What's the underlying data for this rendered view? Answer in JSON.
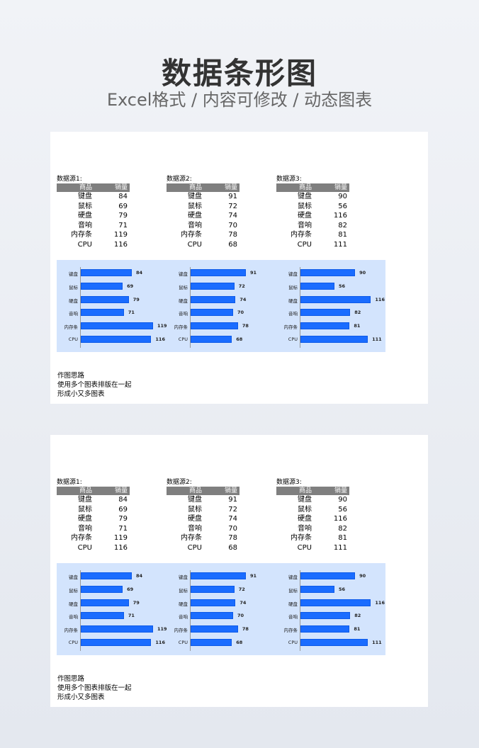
{
  "header": {
    "title": "数据条形图",
    "subtitle": "Excel格式 / 内容可修改 / 动态图表"
  },
  "colors": {
    "bar": "#1a6cff",
    "panel": "#d3e4fd",
    "table_header": "#7f7f7f"
  },
  "cards": [
    {
      "sources": [
        {
          "label": "数据源1:",
          "col1": "商品",
          "col2": "销量",
          "rows": [
            [
              "键盘",
              84
            ],
            [
              "鼠标",
              69
            ],
            [
              "硬盘",
              79
            ],
            [
              "音响",
              71
            ],
            [
              "内存条",
              119
            ],
            [
              "CPU",
              116
            ]
          ]
        },
        {
          "label": "数据源2:",
          "col1": "商品",
          "col2": "销量",
          "rows": [
            [
              "键盘",
              91
            ],
            [
              "鼠标",
              72
            ],
            [
              "硬盘",
              74
            ],
            [
              "音响",
              70
            ],
            [
              "内存条",
              78
            ],
            [
              "CPU",
              68
            ]
          ]
        },
        {
          "label": "数据源3:",
          "col1": "商品",
          "col2": "销量",
          "rows": [
            [
              "键盘",
              90
            ],
            [
              "鼠标",
              56
            ],
            [
              "硬盘",
              116
            ],
            [
              "音响",
              82
            ],
            [
              "内存条",
              81
            ],
            [
              "CPU",
              111
            ]
          ]
        }
      ],
      "notes": [
        "作图思路",
        "使用多个图表排版在一起",
        "形成小又多图表"
      ]
    },
    {
      "sources": [
        {
          "label": "数据源1:",
          "col1": "商品",
          "col2": "销量",
          "rows": [
            [
              "键盘",
              84
            ],
            [
              "鼠标",
              69
            ],
            [
              "硬盘",
              79
            ],
            [
              "音响",
              71
            ],
            [
              "内存条",
              119
            ],
            [
              "CPU",
              116
            ]
          ]
        },
        {
          "label": "数据源2:",
          "col1": "商品",
          "col2": "销量",
          "rows": [
            [
              "键盘",
              91
            ],
            [
              "鼠标",
              72
            ],
            [
              "硬盘",
              74
            ],
            [
              "音响",
              70
            ],
            [
              "内存条",
              78
            ],
            [
              "CPU",
              68
            ]
          ]
        },
        {
          "label": "数据源3:",
          "col1": "商品",
          "col2": "销量",
          "rows": [
            [
              "键盘",
              90
            ],
            [
              "鼠标",
              56
            ],
            [
              "硬盘",
              116
            ],
            [
              "音响",
              82
            ],
            [
              "内存条",
              81
            ],
            [
              "CPU",
              111
            ]
          ]
        }
      ],
      "notes": [
        "作图思路",
        "使用多个图表排版在一起",
        "形成小又多图表"
      ]
    }
  ],
  "chart_data": [
    {
      "type": "bar",
      "orientation": "horizontal",
      "categories": [
        "键盘",
        "鼠标",
        "硬盘",
        "音响",
        "内存条",
        "CPU"
      ],
      "values": [
        84,
        69,
        79,
        71,
        119,
        116
      ]
    },
    {
      "type": "bar",
      "orientation": "horizontal",
      "categories": [
        "键盘",
        "鼠标",
        "硬盘",
        "音响",
        "内存条",
        "CPU"
      ],
      "values": [
        91,
        72,
        74,
        70,
        78,
        68
      ]
    },
    {
      "type": "bar",
      "orientation": "horizontal",
      "categories": [
        "键盘",
        "鼠标",
        "硬盘",
        "音响",
        "内存条",
        "CPU"
      ],
      "values": [
        90,
        56,
        116,
        82,
        81,
        111
      ]
    }
  ]
}
